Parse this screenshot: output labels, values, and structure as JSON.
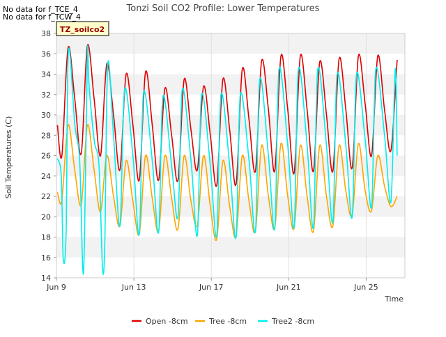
{
  "notes": [
    "No data for f_TCE_4",
    "No data for f_TCW_4"
  ],
  "site_badge": "TZ_soilco2",
  "chart_data": {
    "type": "line",
    "title": "Tonzi Soil CO2 Profile: Lower Temperatures",
    "xlabel": "Time",
    "ylabel": "Soil Temperatures (C)",
    "ylim": [
      14,
      38
    ],
    "yticks": [
      14,
      16,
      18,
      20,
      22,
      24,
      26,
      28,
      30,
      32,
      34,
      36,
      38
    ],
    "xlim_days": [
      0,
      18
    ],
    "xticks": [
      {
        "day": 0,
        "label": "Jun 9"
      },
      {
        "day": 4,
        "label": "Jun 13"
      },
      {
        "day": 8,
        "label": "Jun 17"
      },
      {
        "day": 12,
        "label": "Jun 21"
      },
      {
        "day": 16,
        "label": "Jun 25"
      }
    ],
    "grid": "horizontal bands",
    "legend_position": "bottom",
    "series": [
      {
        "name": "Open -8cm",
        "color": "#dd0000",
        "x": [
          0.05,
          0.28,
          0.6,
          0.95,
          1.28,
          1.6,
          1.95,
          2.28,
          2.6,
          2.95,
          3.28,
          3.6,
          3.95,
          4.28,
          4.6,
          4.95,
          5.28,
          5.6,
          5.95,
          6.28,
          6.6,
          6.95,
          7.28,
          7.6,
          7.95,
          8.28,
          8.6,
          8.95,
          9.28,
          9.6,
          9.95,
          10.28,
          10.6,
          10.95,
          11.28,
          11.6,
          11.95,
          12.28,
          12.6,
          12.95,
          13.28,
          13.6,
          13.95,
          14.28,
          14.6,
          14.95,
          15.28,
          15.6,
          15.95,
          16.28,
          16.6,
          16.95,
          17.28,
          17.6
        ],
        "values": [
          29.0,
          26.0,
          36.6,
          31.5,
          26.2,
          36.8,
          31.5,
          26.0,
          35.0,
          30.0,
          24.6,
          34.0,
          29.0,
          23.6,
          34.2,
          29.0,
          23.6,
          32.6,
          28.0,
          23.6,
          33.5,
          28.5,
          24.6,
          32.8,
          28.0,
          23.1,
          33.5,
          28.5,
          23.2,
          34.5,
          29.5,
          24.5,
          35.3,
          30.5,
          24.5,
          35.8,
          30.5,
          24.3,
          35.8,
          30.5,
          24.5,
          35.2,
          30.0,
          24.5,
          35.5,
          30.5,
          24.8,
          35.8,
          31.0,
          26.0,
          35.8,
          30.5,
          26.5,
          35.4
        ]
      },
      {
        "name": "Tree -8cm",
        "color": "#ffa500",
        "x": [
          0.05,
          0.28,
          0.6,
          0.95,
          1.28,
          1.6,
          1.95,
          2.28,
          2.6,
          2.95,
          3.28,
          3.6,
          3.95,
          4.28,
          4.6,
          4.95,
          5.28,
          5.6,
          5.95,
          6.28,
          6.6,
          6.95,
          7.28,
          7.6,
          7.95,
          8.28,
          8.6,
          8.95,
          9.28,
          9.6,
          9.95,
          10.28,
          10.6,
          10.95,
          11.28,
          11.6,
          11.95,
          12.28,
          12.6,
          12.95,
          13.28,
          13.6,
          13.95,
          14.28,
          14.6,
          14.95,
          15.28,
          15.6,
          15.95,
          16.28,
          16.6,
          16.95,
          17.28,
          17.6
        ],
        "values": [
          22.4,
          21.6,
          29.0,
          24.5,
          21.2,
          29.0,
          24.5,
          20.5,
          26.0,
          22.0,
          19.1,
          25.5,
          21.5,
          18.3,
          26.0,
          21.8,
          18.6,
          26.0,
          21.8,
          18.8,
          26.0,
          21.5,
          19.2,
          26.0,
          21.0,
          17.8,
          25.5,
          21.0,
          18.1,
          26.0,
          21.5,
          18.6,
          27.0,
          22.0,
          18.9,
          27.2,
          22.0,
          18.9,
          27.0,
          22.0,
          18.6,
          27.0,
          22.0,
          19.1,
          27.0,
          22.5,
          20.2,
          27.2,
          22.5,
          20.6,
          26.0,
          23.0,
          21.0,
          22.0
        ]
      },
      {
        "name": "Tree2 -8cm",
        "color": "#00eeee",
        "x": [
          0.05,
          0.25,
          0.35,
          0.5,
          0.62,
          0.95,
          1.2,
          1.36,
          1.45,
          1.6,
          1.68,
          1.95,
          2.2,
          2.38,
          2.5,
          2.65,
          2.95,
          3.28,
          3.52,
          3.95,
          4.28,
          4.5,
          4.95,
          5.28,
          5.5,
          5.95,
          6.28,
          6.5,
          6.95,
          7.28,
          7.5,
          7.95,
          8.28,
          8.5,
          8.95,
          9.28,
          9.5,
          9.95,
          10.28,
          10.5,
          10.95,
          11.28,
          11.5,
          11.95,
          12.28,
          12.5,
          12.95,
          13.28,
          13.5,
          13.95,
          14.28,
          14.5,
          14.95,
          15.28,
          15.5,
          15.95,
          16.28,
          16.5,
          16.95,
          17.28,
          17.5,
          17.6
        ],
        "values": [
          25.7,
          24.0,
          15.9,
          18.5,
          36.3,
          29.0,
          25.5,
          14.9,
          18.0,
          36.0,
          33.0,
          27.5,
          25.0,
          15.0,
          17.5,
          35.0,
          28.0,
          19.1,
          32.5,
          26.0,
          18.3,
          32.2,
          25.5,
          18.5,
          31.8,
          25.0,
          20.0,
          32.5,
          25.5,
          18.2,
          32.0,
          25.0,
          18.1,
          32.0,
          25.0,
          18.0,
          32.0,
          25.5,
          18.6,
          33.5,
          26.0,
          18.9,
          34.5,
          27.0,
          19.0,
          34.5,
          27.0,
          19.0,
          34.5,
          27.0,
          19.5,
          34.0,
          27.0,
          20.0,
          34.0,
          27.5,
          21.0,
          34.5,
          28.0,
          21.5,
          34.5,
          26.0
        ]
      }
    ]
  }
}
